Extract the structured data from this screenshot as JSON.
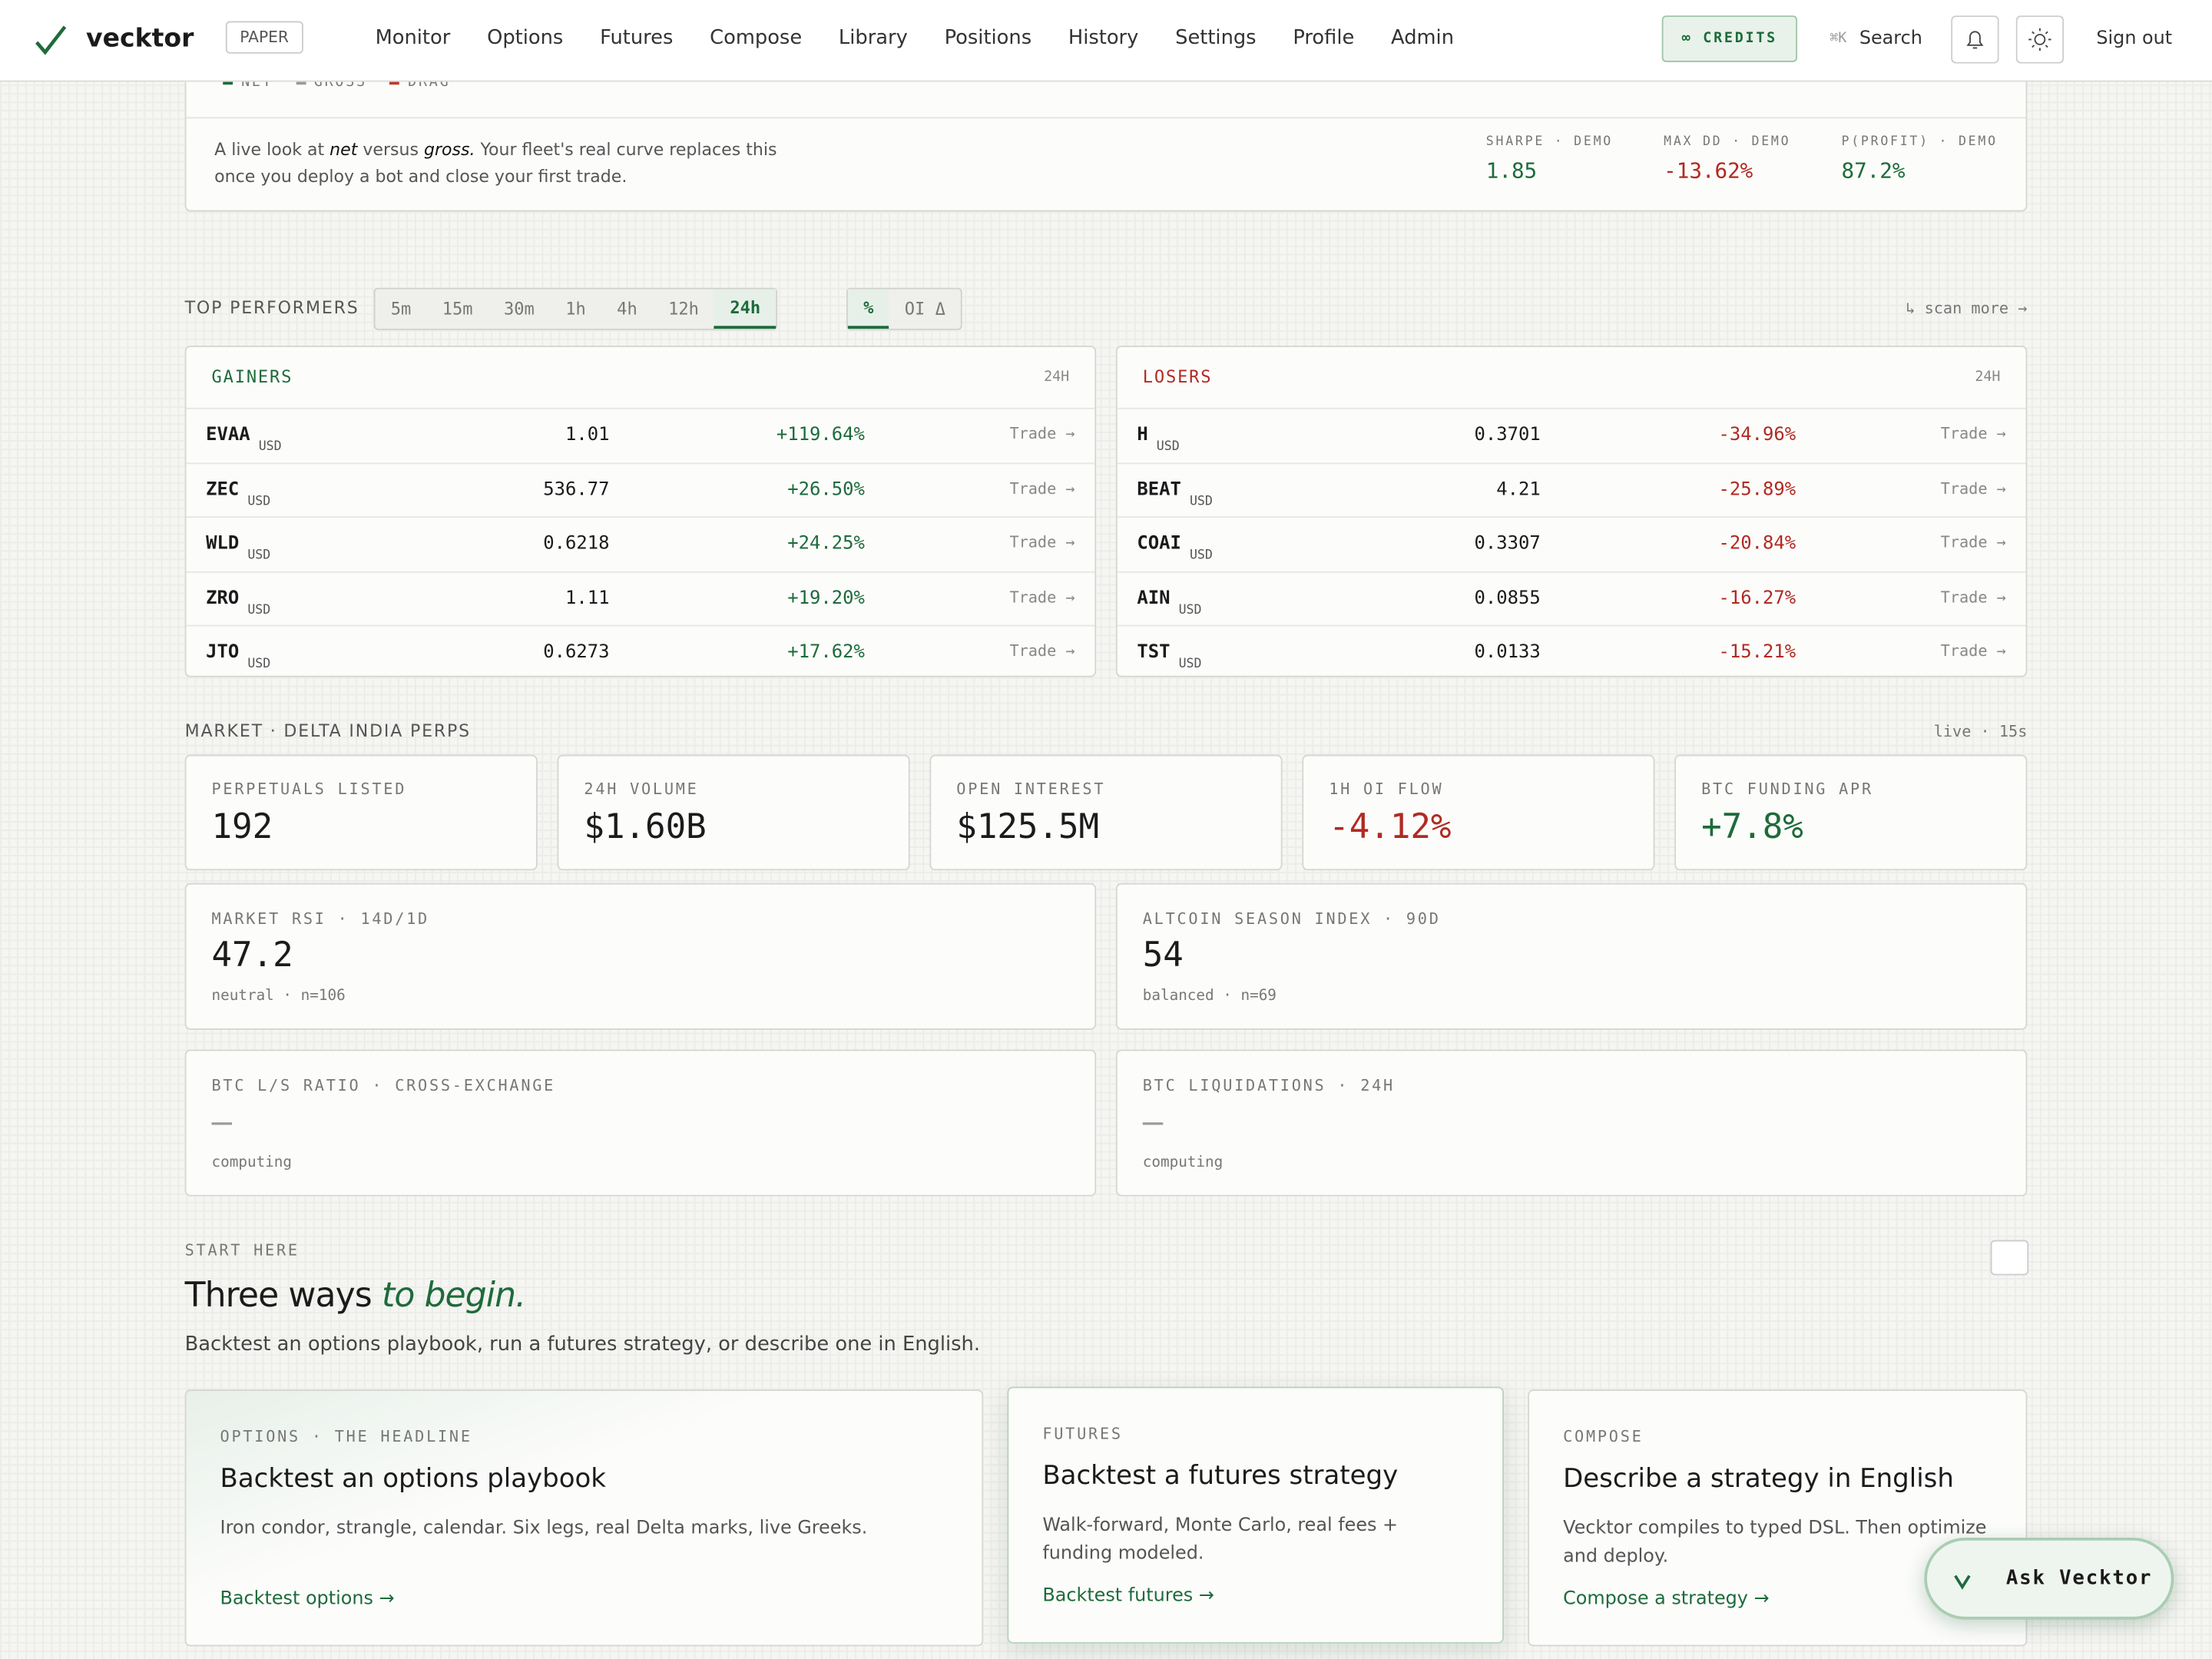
{
  "nav": {
    "brand": "vecktor",
    "mode_badge": "PAPER",
    "links": [
      "Monitor",
      "Options",
      "Futures",
      "Compose",
      "Library",
      "Positions",
      "History",
      "Settings",
      "Profile",
      "Admin"
    ],
    "credits": "∞ CREDITS",
    "search_shortcut": "⌘K",
    "search": "Search",
    "sign_out": "Sign out"
  },
  "pnl_card": {
    "legend": [
      "NET",
      "GROSS",
      "DRAG"
    ],
    "description": [
      {
        "text": "A live look at ",
        "em": false
      },
      {
        "text": "net",
        "em": true
      },
      {
        "text": " versus ",
        "em": false
      },
      {
        "text": "gross.",
        "em": true
      },
      {
        "text": " Your fleet's real curve replaces this once you deploy a bot and close your first trade.",
        "em": false
      }
    ],
    "stats": [
      {
        "label": "SHARPE · DEMO",
        "value": "1.85",
        "tone": "positive"
      },
      {
        "label": "MAX DD · DEMO",
        "value": "-13.62%",
        "tone": "negative"
      },
      {
        "label": "P(PROFIT) · DEMO",
        "value": "87.2%",
        "tone": "positive"
      }
    ]
  },
  "top_performers": {
    "label": "TOP PERFORMERS",
    "timeframes": [
      "5m",
      "15m",
      "30m",
      "1h",
      "4h",
      "12h",
      "24h"
    ],
    "active_timeframe": "24h",
    "modes": [
      "%",
      "OI Δ"
    ],
    "active_mode": "%",
    "scan_more": "↳ scan more →",
    "tables": [
      {
        "title": "GAINERS",
        "tone": "positive",
        "window": "24H",
        "rows": [
          {
            "symbol": "EVAA",
            "quote": "USD",
            "price": "1.01",
            "change": "+119.64%",
            "action": "Trade →"
          },
          {
            "symbol": "ZEC",
            "quote": "USD",
            "price": "536.77",
            "change": "+26.50%",
            "action": "Trade →"
          },
          {
            "symbol": "WLD",
            "quote": "USD",
            "price": "0.6218",
            "change": "+24.25%",
            "action": "Trade →"
          },
          {
            "symbol": "ZRO",
            "quote": "USD",
            "price": "1.11",
            "change": "+19.20%",
            "action": "Trade →"
          },
          {
            "symbol": "JTO",
            "quote": "USD",
            "price": "0.6273",
            "change": "+17.62%",
            "action": "Trade →"
          }
        ]
      },
      {
        "title": "LOSERS",
        "tone": "negative",
        "window": "24H",
        "rows": [
          {
            "symbol": "H",
            "quote": "USD",
            "price": "0.3701",
            "change": "-34.96%",
            "action": "Trade →"
          },
          {
            "symbol": "BEAT",
            "quote": "USD",
            "price": "4.21",
            "change": "-25.89%",
            "action": "Trade →"
          },
          {
            "symbol": "COAI",
            "quote": "USD",
            "price": "0.3307",
            "change": "-20.84%",
            "action": "Trade →"
          },
          {
            "symbol": "AIN",
            "quote": "USD",
            "price": "0.0855",
            "change": "-16.27%",
            "action": "Trade →"
          },
          {
            "symbol": "TST",
            "quote": "USD",
            "price": "0.0133",
            "change": "-15.21%",
            "action": "Trade →"
          }
        ]
      }
    ]
  },
  "market": {
    "label": "MARKET · DELTA INDIA PERPS",
    "status": "live · 15s",
    "stats": [
      {
        "label": "PERPETUALS LISTED",
        "value": "192",
        "tone": "neutral"
      },
      {
        "label": "24H VOLUME",
        "value": "$1.60B",
        "tone": "neutral"
      },
      {
        "label": "OPEN INTEREST",
        "value": "$125.5M",
        "tone": "neutral"
      },
      {
        "label": "1H OI FLOW",
        "value": "-4.12%",
        "tone": "negative"
      },
      {
        "label": "BTC FUNDING APR",
        "value": "+7.8%",
        "tone": "positive"
      }
    ],
    "indicators": [
      {
        "label": "MARKET RSI · 14D/1D",
        "value": "47.2",
        "note": "neutral · n=106"
      },
      {
        "label": "ALTCOIN SEASON INDEX · 90D",
        "value": "54",
        "note": "balanced · n=69"
      },
      {
        "label": "BTC L/S RATIO · CROSS-EXCHANGE",
        "value": "—",
        "note": "computing"
      },
      {
        "label": "BTC LIQUIDATIONS · 24H",
        "value": "—",
        "note": "computing"
      }
    ]
  },
  "start": {
    "eyebrow": "START HERE",
    "title": "Three ways",
    "title_accent": "to begin.",
    "subtitle": "Backtest an options playbook, run a futures strategy, or describe one in English.",
    "cards": [
      {
        "eyebrow": "OPTIONS · THE HEADLINE",
        "title": "Backtest an options playbook",
        "description": "Iron condor, strangle, calendar. Six legs, real Delta marks, live Greeks.",
        "link": "Backtest options →"
      },
      {
        "eyebrow": "FUTURES",
        "title": "Backtest a futures strategy",
        "description": "Walk-forward, Monte Carlo, real fees + funding modeled.",
        "link": "Backtest futures →"
      },
      {
        "eyebrow": "COMPOSE",
        "title": "Describe a strategy in English",
        "description": "Vecktor compiles to typed DSL. Then optimize and deploy.",
        "link": "Compose a strategy →"
      }
    ]
  },
  "assistant": {
    "label": "Ask Vecktor"
  }
}
